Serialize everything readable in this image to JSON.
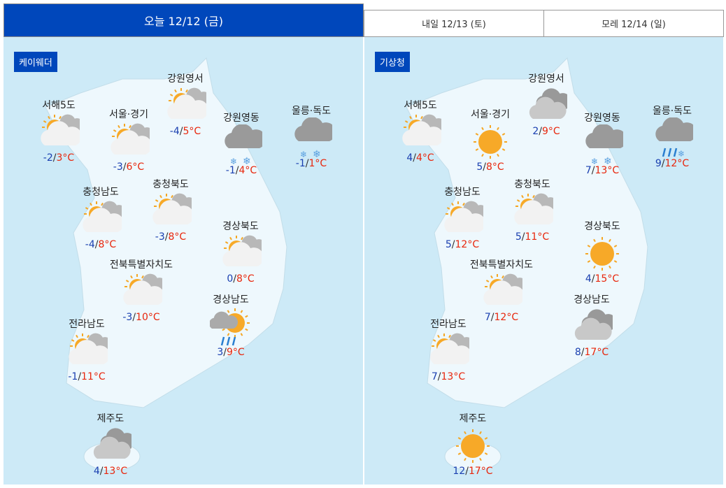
{
  "tabs": [
    {
      "label": "오늘 12/12 (금)",
      "active": true
    },
    {
      "label": "내일 12/13 (토)",
      "active": false
    },
    {
      "label": "모레 12/14 (일)",
      "active": false
    }
  ],
  "colors": {
    "accent": "#0047bb",
    "min_temp": "#1a3fb0",
    "max_temp": "#e8260c",
    "map_bg": "#cdeaf7"
  },
  "unit": "°C",
  "panels": [
    {
      "source": "케이웨더",
      "regions": [
        {
          "name": "서해5도",
          "icon": "partly-cloudy",
          "min": "-2",
          "max": "3"
        },
        {
          "name": "서울·경기",
          "icon": "partly-cloudy",
          "min": "-3",
          "max": "6"
        },
        {
          "name": "강원영서",
          "icon": "partly-cloudy",
          "min": "-4",
          "max": "5"
        },
        {
          "name": "강원영동",
          "icon": "snow",
          "min": "-1",
          "max": "4"
        },
        {
          "name": "울릉·독도",
          "icon": "snow",
          "min": "-1",
          "max": "1"
        },
        {
          "name": "충청남도",
          "icon": "partly-cloudy",
          "min": "-4",
          "max": "8"
        },
        {
          "name": "충청북도",
          "icon": "partly-cloudy",
          "min": "-3",
          "max": "8"
        },
        {
          "name": "경상북도",
          "icon": "partly-cloudy",
          "min": "0",
          "max": "8"
        },
        {
          "name": "전북특별자치도",
          "icon": "partly-cloudy",
          "min": "-3",
          "max": "10"
        },
        {
          "name": "경상남도",
          "icon": "sun-rain",
          "min": "3",
          "max": "9"
        },
        {
          "name": "전라남도",
          "icon": "partly-cloudy",
          "min": "-1",
          "max": "11"
        },
        {
          "name": "제주도",
          "icon": "cloudy",
          "min": "4",
          "max": "13"
        }
      ]
    },
    {
      "source": "기상청",
      "regions": [
        {
          "name": "서해5도",
          "icon": "partly-cloudy",
          "min": "4",
          "max": "4"
        },
        {
          "name": "서울·경기",
          "icon": "sunny",
          "min": "5",
          "max": "8"
        },
        {
          "name": "강원영서",
          "icon": "cloudy",
          "min": "2",
          "max": "9"
        },
        {
          "name": "강원영동",
          "icon": "snow",
          "min": "7",
          "max": "13"
        },
        {
          "name": "울릉·독도",
          "icon": "rain-snow",
          "min": "9",
          "max": "12"
        },
        {
          "name": "충청남도",
          "icon": "partly-cloudy",
          "min": "5",
          "max": "12"
        },
        {
          "name": "충청북도",
          "icon": "partly-cloudy",
          "min": "5",
          "max": "11"
        },
        {
          "name": "경상북도",
          "icon": "sunny",
          "min": "4",
          "max": "15"
        },
        {
          "name": "전북특별자치도",
          "icon": "partly-cloudy",
          "min": "7",
          "max": "12"
        },
        {
          "name": "경상남도",
          "icon": "cloudy",
          "min": "8",
          "max": "17"
        },
        {
          "name": "전라남도",
          "icon": "partly-cloudy",
          "min": "7",
          "max": "13"
        },
        {
          "name": "제주도",
          "icon": "sunny",
          "min": "12",
          "max": "17"
        }
      ]
    }
  ]
}
